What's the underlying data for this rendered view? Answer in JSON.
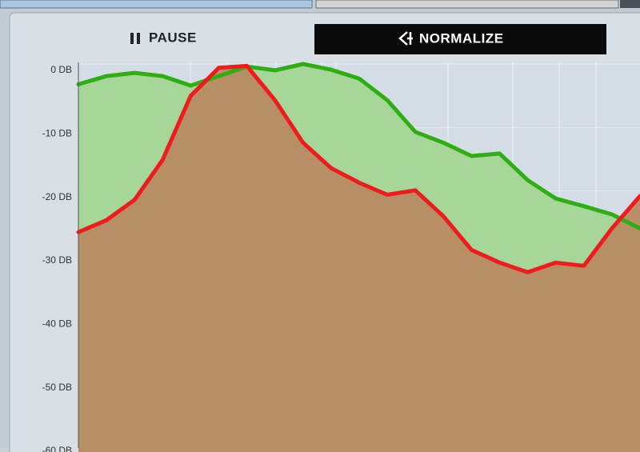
{
  "toolbar": {
    "pause": "PAUSE",
    "normalize": "NORMALIZE"
  },
  "chart_data": {
    "type": "area",
    "ylim": [
      -60,
      0
    ],
    "yticks": [
      {
        "value": 0,
        "label": "0 DB"
      },
      {
        "value": -10,
        "label": "-10 DB"
      },
      {
        "value": -20,
        "label": "-20 DB"
      },
      {
        "value": -30,
        "label": "-30 DB"
      },
      {
        "value": -40,
        "label": "-40 DB"
      },
      {
        "value": -50,
        "label": "-50 DB"
      },
      {
        "value": -60,
        "label": "-60 DB"
      }
    ],
    "series": [
      {
        "color": "#2fae12",
        "fill": "#9ed58a",
        "values": [
          -3.2,
          -1.9,
          -1.4,
          -1.9,
          -3.4,
          -1.9,
          -0.4,
          -1.0,
          0,
          -0.9,
          -2.3,
          -5.7,
          -10.7,
          -12.4,
          -14.5,
          -14.1,
          -18.3,
          -21.2,
          -22.4,
          -23.7,
          -25.9
        ]
      },
      {
        "color": "#ee1c1c",
        "fill": "#b88a62",
        "values": [
          -26.5,
          -24.6,
          -21.4,
          -15.1,
          -5.0,
          -0.6,
          -0.3,
          -5.7,
          -12.4,
          -16.4,
          -18.7,
          -20.6,
          -19.9,
          -24.0,
          -29.3,
          -31.3,
          -32.8,
          -31.3,
          -31.8,
          -25.9,
          -20.8
        ]
      }
    ]
  }
}
